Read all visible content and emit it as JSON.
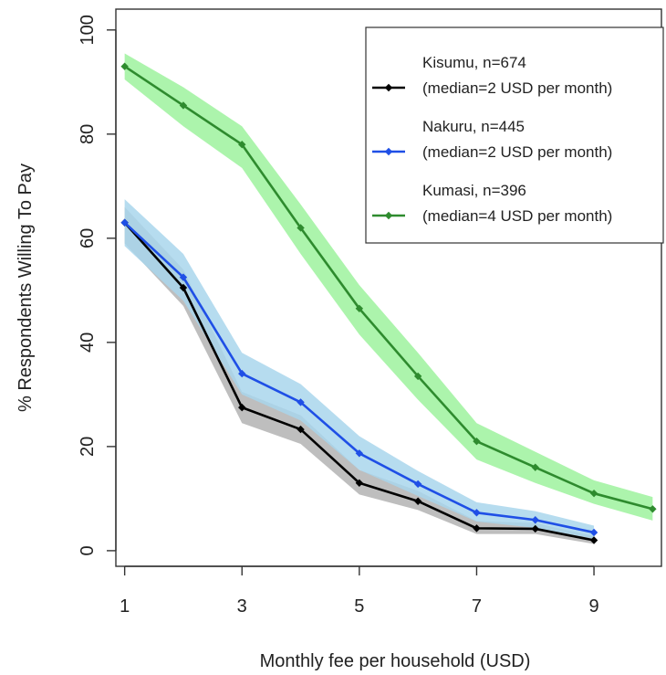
{
  "chart_data": {
    "type": "line",
    "xlabel": "Monthly fee per household (USD)",
    "ylabel": "% Respondents Willing To Pay",
    "xlim": [
      0.85,
      10.15
    ],
    "ylim": [
      -3,
      104
    ],
    "x_ticks": [
      1,
      3,
      5,
      7,
      9
    ],
    "y_ticks": [
      0,
      20,
      40,
      60,
      80,
      100
    ],
    "legend_position": "top-right",
    "band": "shaded confidence band around each line",
    "series": [
      {
        "name": "Kisumu, n=674",
        "note": "(median=2 USD per month)",
        "color": "#000000",
        "band_color": "#b3b3b3",
        "x": [
          1,
          2,
          3,
          4,
          5,
          6,
          7,
          8,
          9
        ],
        "y": [
          63,
          50.5,
          27.5,
          23.3,
          13,
          9.5,
          4.3,
          4.2,
          2
        ],
        "lower": [
          59,
          47,
          24.5,
          20.5,
          10.8,
          7.8,
          3.2,
          3.2,
          1.3
        ],
        "upper": [
          66,
          54,
          30.5,
          26,
          15.5,
          11.5,
          5.7,
          5.3,
          2.8
        ]
      },
      {
        "name": "Nakuru, n=445",
        "note": "(median=2 USD per month)",
        "color": "#1f4fe6",
        "band_color": "#a9d6ec",
        "x": [
          1,
          2,
          3,
          4,
          5,
          6,
          7,
          8,
          9
        ],
        "y": [
          63,
          52.5,
          34,
          28.5,
          18.7,
          12.8,
          7.3,
          5.9,
          3.5
        ],
        "lower": [
          58.5,
          48,
          30,
          25,
          15.5,
          10.5,
          5.6,
          4.4,
          2.3
        ],
        "upper": [
          67.5,
          57,
          38,
          32,
          22,
          15.3,
          9.3,
          7.6,
          4.8
        ]
      },
      {
        "name": "Kumasi, n=396",
        "note": "(median=4 USD per month)",
        "color": "#2e8b2e",
        "band_color": "#9ef29e",
        "x": [
          1,
          2,
          3,
          4,
          5,
          6,
          7,
          8,
          9,
          10
        ],
        "y": [
          93,
          85.5,
          78,
          62,
          46.5,
          33.5,
          21,
          16,
          11,
          8
        ],
        "lower": [
          90.5,
          81.5,
          73.5,
          57,
          41.5,
          29,
          17.5,
          13,
          9,
          5.8
        ],
        "upper": [
          95.5,
          89,
          81.5,
          66.5,
          51,
          38,
          24.5,
          19,
          13.5,
          10.3
        ]
      }
    ]
  }
}
